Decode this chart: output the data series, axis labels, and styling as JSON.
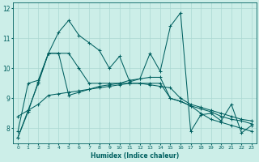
{
  "xlabel": "Humidex (Indice chaleur)",
  "bg_color": "#cceee8",
  "line_color": "#006060",
  "grid_color": "#aad8d2",
  "xlim": [
    -0.5,
    23.5
  ],
  "ylim": [
    7.5,
    12.2
  ],
  "yticks": [
    8,
    9,
    10,
    11,
    12
  ],
  "xticks": [
    0,
    1,
    2,
    3,
    4,
    5,
    6,
    7,
    8,
    9,
    10,
    11,
    12,
    13,
    14,
    15,
    16,
    17,
    18,
    19,
    20,
    21,
    22,
    23
  ],
  "series": [
    [
      7.7,
      8.6,
      9.5,
      10.5,
      11.2,
      11.6,
      11.1,
      10.85,
      10.6,
      10.0,
      10.4,
      9.55,
      9.65,
      10.5,
      9.9,
      11.4,
      11.85,
      7.9,
      8.45,
      8.5,
      8.25,
      8.8,
      7.85,
      8.1
    ],
    [
      7.9,
      9.5,
      9.6,
      10.5,
      10.5,
      9.1,
      9.2,
      9.3,
      9.4,
      9.45,
      9.5,
      9.6,
      9.65,
      9.7,
      9.7,
      9.0,
      8.9,
      8.75,
      8.65,
      8.55,
      8.4,
      8.3,
      8.25,
      8.15
    ],
    [
      7.7,
      8.55,
      9.55,
      10.5,
      10.5,
      10.5,
      10.0,
      9.5,
      9.5,
      9.5,
      9.5,
      9.5,
      9.5,
      9.5,
      9.5,
      9.0,
      8.9,
      8.75,
      8.5,
      8.3,
      8.2,
      8.1,
      8.0,
      7.9
    ],
    [
      8.4,
      8.6,
      8.8,
      9.1,
      9.15,
      9.2,
      9.25,
      9.3,
      9.35,
      9.4,
      9.45,
      9.5,
      9.5,
      9.45,
      9.4,
      9.35,
      9.0,
      8.8,
      8.7,
      8.6,
      8.5,
      8.4,
      8.3,
      8.25
    ]
  ]
}
